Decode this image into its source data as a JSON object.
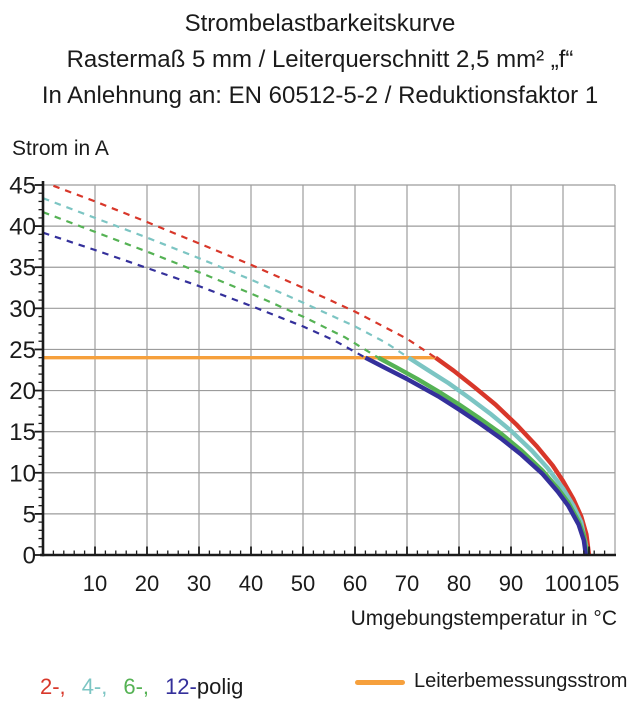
{
  "chart_data": {
    "type": "line",
    "title": "Strombelastbarkeitskurve",
    "subtitle": "Rastermaß 5 mm / Leiterquerschnitt 2,5 mm² „f“",
    "note": "In Anlehnung an: EN 60512-5-2 / Reduktionsfaktor 1",
    "xlabel": "Umgebungstemperatur in °C",
    "ylabel": "Strom in A",
    "xlim": [
      0,
      110
    ],
    "ylim": [
      0,
      45
    ],
    "x_major_ticks": [
      10,
      20,
      30,
      40,
      50,
      60,
      70,
      80,
      90,
      100,
      105
    ],
    "x_minor_step": 2,
    "y_major_ticks": [
      0,
      5,
      10,
      15,
      20,
      25,
      30,
      35,
      40,
      45
    ],
    "y_minor_step": 1,
    "axis_color": "#1b1b1b",
    "grid": {
      "color": "#9c9c9c",
      "x_lines": [
        10,
        20,
        30,
        40,
        50,
        60,
        70,
        80,
        90,
        100,
        110
      ],
      "y_lines": [
        5,
        10,
        15,
        20,
        25,
        30,
        35,
        40,
        45
      ]
    },
    "rated_current": {
      "label": "Leiterbemessungsstrom",
      "value": 24,
      "t_start": 0,
      "t_end": 75.5,
      "color": "#f6a03c"
    },
    "series": [
      {
        "name": "2-polig",
        "poles": 2,
        "color": "#d8372a",
        "dashed_points": [
          [
            2,
            44.9
          ],
          [
            10,
            43.0
          ],
          [
            20,
            40.5
          ],
          [
            30,
            37.9
          ],
          [
            40,
            35.3
          ],
          [
            50,
            32.5
          ],
          [
            60,
            29.6
          ],
          [
            70,
            26.3
          ],
          [
            75.5,
            24
          ]
        ],
        "solid_points": [
          [
            75.5,
            24
          ],
          [
            79,
            22.4
          ],
          [
            83,
            20.4
          ],
          [
            87,
            18.3
          ],
          [
            91,
            15.9
          ],
          [
            95,
            13.2
          ],
          [
            98,
            10.9
          ],
          [
            100,
            9.0
          ],
          [
            102,
            6.8
          ],
          [
            103.5,
            4.7
          ],
          [
            104.5,
            2.5
          ],
          [
            105,
            0
          ]
        ]
      },
      {
        "name": "4-polig",
        "poles": 4,
        "color": "#7cc5c3",
        "dashed_points": [
          [
            0,
            43.4
          ],
          [
            10,
            41.0
          ],
          [
            20,
            38.6
          ],
          [
            30,
            36.1
          ],
          [
            40,
            33.5
          ],
          [
            50,
            30.7
          ],
          [
            60,
            27.8
          ],
          [
            66,
            25.8
          ],
          [
            70.3,
            24
          ]
        ],
        "solid_points": [
          [
            70.3,
            24
          ],
          [
            74,
            22.5
          ],
          [
            78,
            20.9
          ],
          [
            82,
            19.1
          ],
          [
            86,
            17.2
          ],
          [
            90,
            15.1
          ],
          [
            94,
            12.7
          ],
          [
            97,
            10.6
          ],
          [
            100,
            8.1
          ],
          [
            102,
            6.0
          ],
          [
            103.5,
            4.0
          ],
          [
            104.8,
            0
          ]
        ]
      },
      {
        "name": "6-polig",
        "poles": 6,
        "color": "#55b254",
        "dashed_points": [
          [
            0,
            41.7
          ],
          [
            10,
            39.3
          ],
          [
            20,
            36.9
          ],
          [
            30,
            34.4
          ],
          [
            40,
            31.8
          ],
          [
            50,
            29.0
          ],
          [
            58,
            26.5
          ],
          [
            64.5,
            24
          ]
        ],
        "solid_points": [
          [
            64.5,
            24
          ],
          [
            68,
            22.8
          ],
          [
            72,
            21.4
          ],
          [
            76,
            19.9
          ],
          [
            80,
            18.3
          ],
          [
            84,
            16.6
          ],
          [
            88,
            14.8
          ],
          [
            92,
            12.7
          ],
          [
            96,
            10.3
          ],
          [
            99,
            8.1
          ],
          [
            101,
            6.4
          ],
          [
            103,
            4.1
          ],
          [
            104,
            2.4
          ],
          [
            104.6,
            0
          ]
        ]
      },
      {
        "name": "12-polig",
        "poles": 12,
        "color": "#34309b",
        "dashed_points": [
          [
            0,
            39.2
          ],
          [
            10,
            37.1
          ],
          [
            20,
            34.9
          ],
          [
            30,
            32.7
          ],
          [
            40,
            30.3
          ],
          [
            50,
            27.8
          ],
          [
            56,
            26.1
          ],
          [
            62,
            24
          ]
        ],
        "solid_points": [
          [
            62,
            24
          ],
          [
            66,
            22.7
          ],
          [
            70,
            21.4
          ],
          [
            76,
            19.3
          ],
          [
            80,
            17.7
          ],
          [
            84,
            16.0
          ],
          [
            88,
            14.2
          ],
          [
            92,
            12.2
          ],
          [
            96,
            9.9
          ],
          [
            99,
            7.7
          ],
          [
            101,
            6.0
          ],
          [
            103,
            3.7
          ],
          [
            104,
            1.8
          ],
          [
            104.4,
            0
          ]
        ]
      }
    ],
    "legend": {
      "poles": [
        {
          "label": "2-,",
          "color": "#d8372a"
        },
        {
          "label": "4-,",
          "color": "#7cc5c3"
        },
        {
          "label": "6-,",
          "color": "#55b254"
        },
        {
          "label": "12-",
          "color": "#34309b"
        }
      ],
      "suffix": "polig",
      "rated_label": "Leiterbemessungsstrom",
      "rated_color": "#f6a03c"
    }
  }
}
